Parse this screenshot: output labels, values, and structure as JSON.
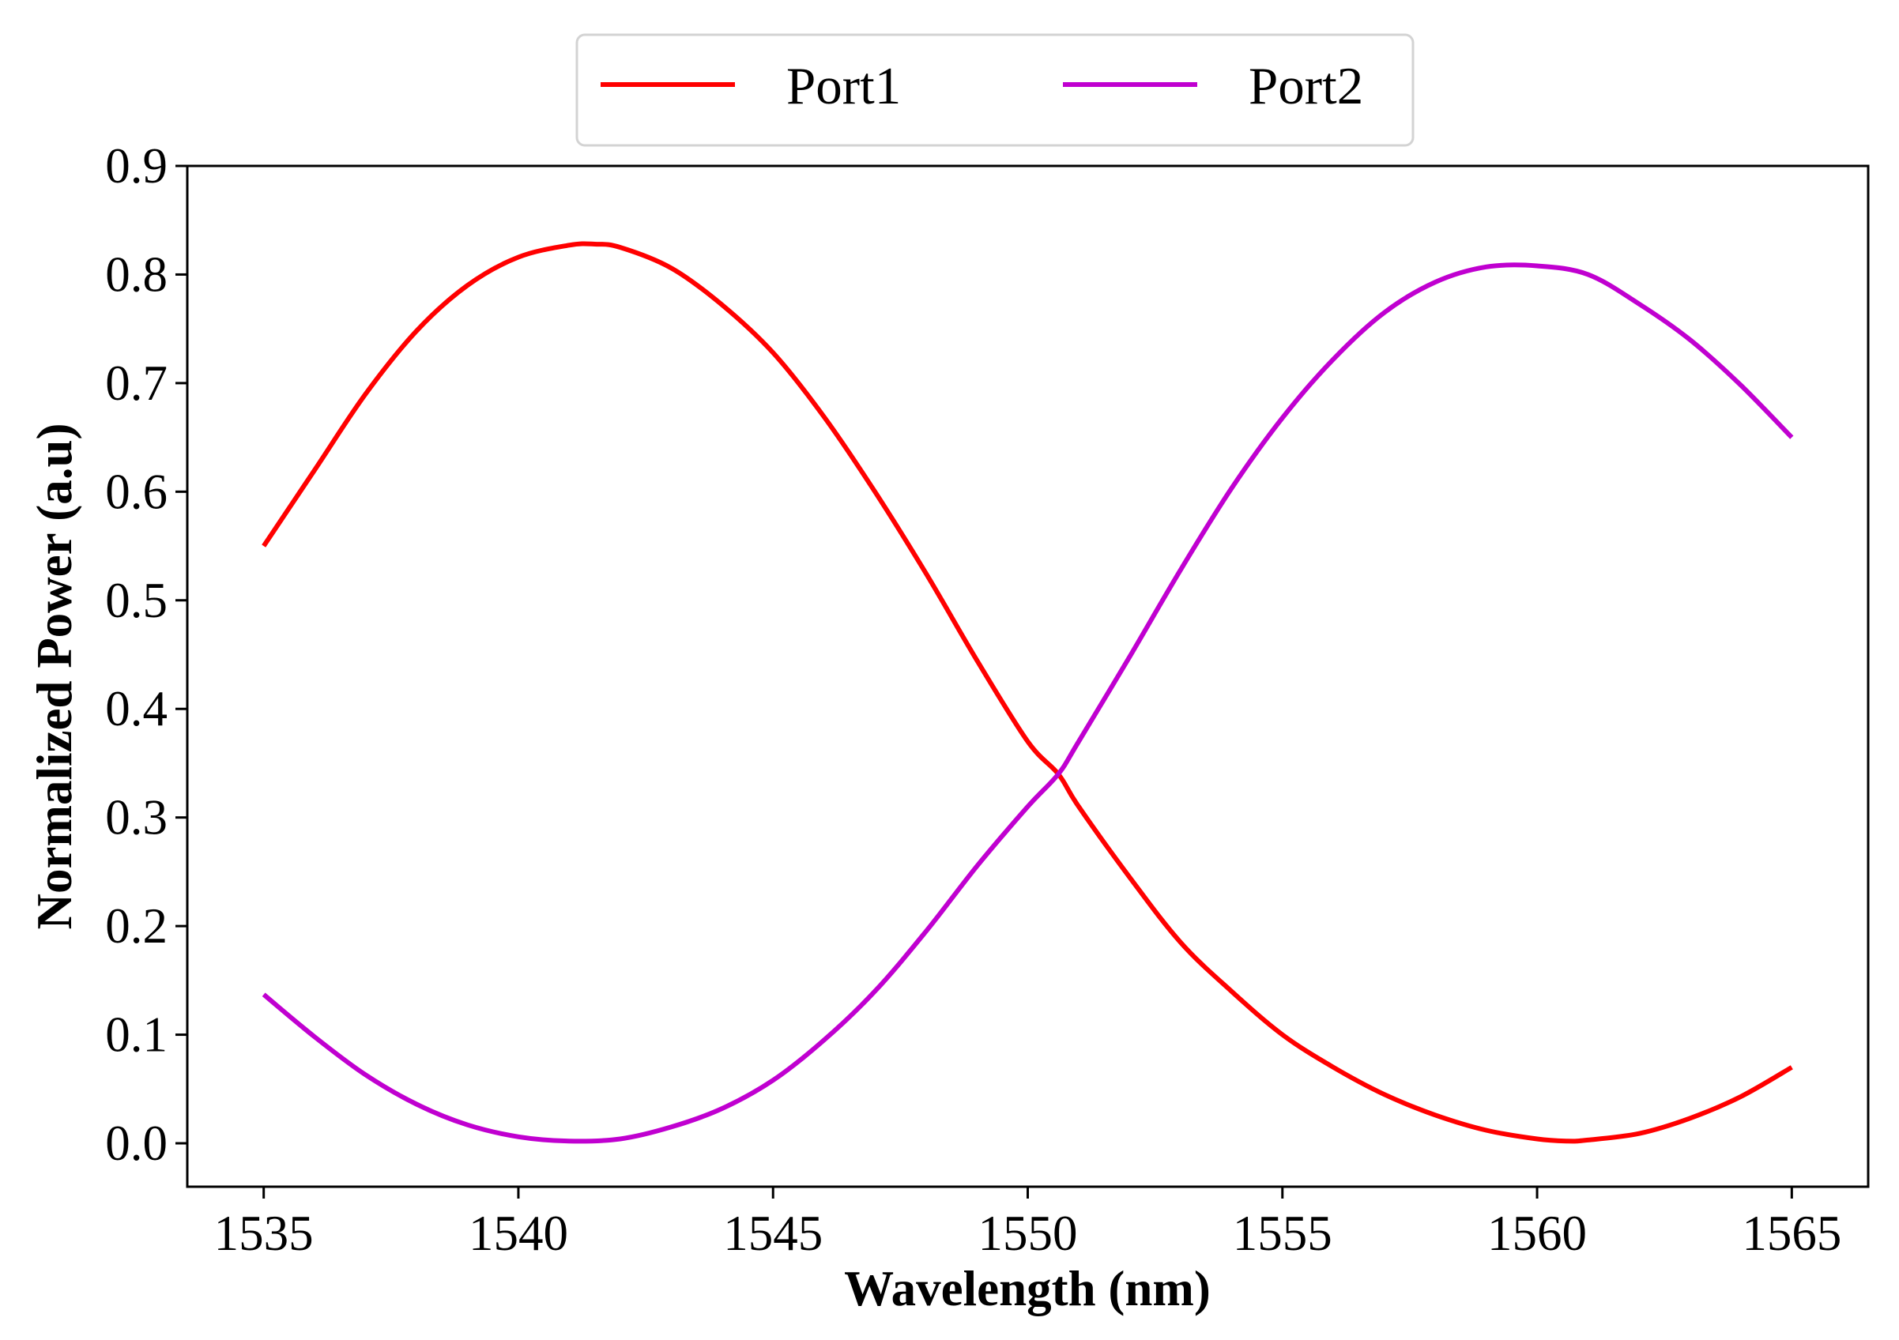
{
  "chart_data": {
    "type": "line",
    "title": "",
    "xlabel": "Wavelength (nm)",
    "ylabel": "Normalized Power (a.u)",
    "xlim": [
      1533.5,
      1566.5
    ],
    "ylim": [
      -0.04,
      0.9
    ],
    "xticks": [
      1535,
      1540,
      1545,
      1550,
      1555,
      1560,
      1565
    ],
    "yticks": [
      0.0,
      0.1,
      0.2,
      0.3,
      0.4,
      0.5,
      0.6,
      0.7,
      0.8,
      0.9
    ],
    "xtick_labels": [
      "1535",
      "1540",
      "1545",
      "1550",
      "1555",
      "1560",
      "1565"
    ],
    "ytick_labels": [
      "0.0",
      "0.1",
      "0.2",
      "0.3",
      "0.4",
      "0.5",
      "0.6",
      "0.7",
      "0.8",
      "0.9"
    ],
    "grid": false,
    "legend": {
      "placement": "top-center, outside plot",
      "columns": 2
    },
    "series": [
      {
        "name": "Port1",
        "color": "#ff0000",
        "x": [
          1535,
          1536,
          1537,
          1538,
          1539,
          1540,
          1541,
          1541.5,
          1542,
          1543,
          1544,
          1545,
          1546,
          1547,
          1548,
          1549,
          1550,
          1550.6,
          1551,
          1552,
          1553,
          1554,
          1555,
          1556,
          1557,
          1558,
          1559,
          1560,
          1560.6,
          1561,
          1562,
          1563,
          1564,
          1565
        ],
        "y": [
          0.55,
          0.62,
          0.69,
          0.748,
          0.79,
          0.816,
          0.827,
          0.828,
          0.825,
          0.806,
          0.772,
          0.728,
          0.669,
          0.6,
          0.525,
          0.445,
          0.37,
          0.34,
          0.31,
          0.245,
          0.185,
          0.14,
          0.1,
          0.07,
          0.045,
          0.026,
          0.012,
          0.004,
          0.002,
          0.003,
          0.009,
          0.023,
          0.043,
          0.07
        ]
      },
      {
        "name": "Port2",
        "color": "#c000d0",
        "x": [
          1535,
          1536,
          1537,
          1538,
          1539,
          1540,
          1541,
          1542,
          1543,
          1544,
          1545,
          1546,
          1547,
          1548,
          1549,
          1550,
          1550.6,
          1551,
          1552,
          1553,
          1554,
          1555,
          1556,
          1557,
          1558,
          1559,
          1560,
          1561,
          1562,
          1563,
          1564,
          1565
        ],
        "y": [
          0.137,
          0.098,
          0.063,
          0.036,
          0.017,
          0.006,
          0.002,
          0.004,
          0.015,
          0.032,
          0.058,
          0.095,
          0.14,
          0.195,
          0.255,
          0.31,
          0.34,
          0.37,
          0.448,
          0.528,
          0.603,
          0.668,
          0.722,
          0.765,
          0.793,
          0.807,
          0.808,
          0.8,
          0.773,
          0.74,
          0.698,
          0.65
        ]
      }
    ]
  }
}
